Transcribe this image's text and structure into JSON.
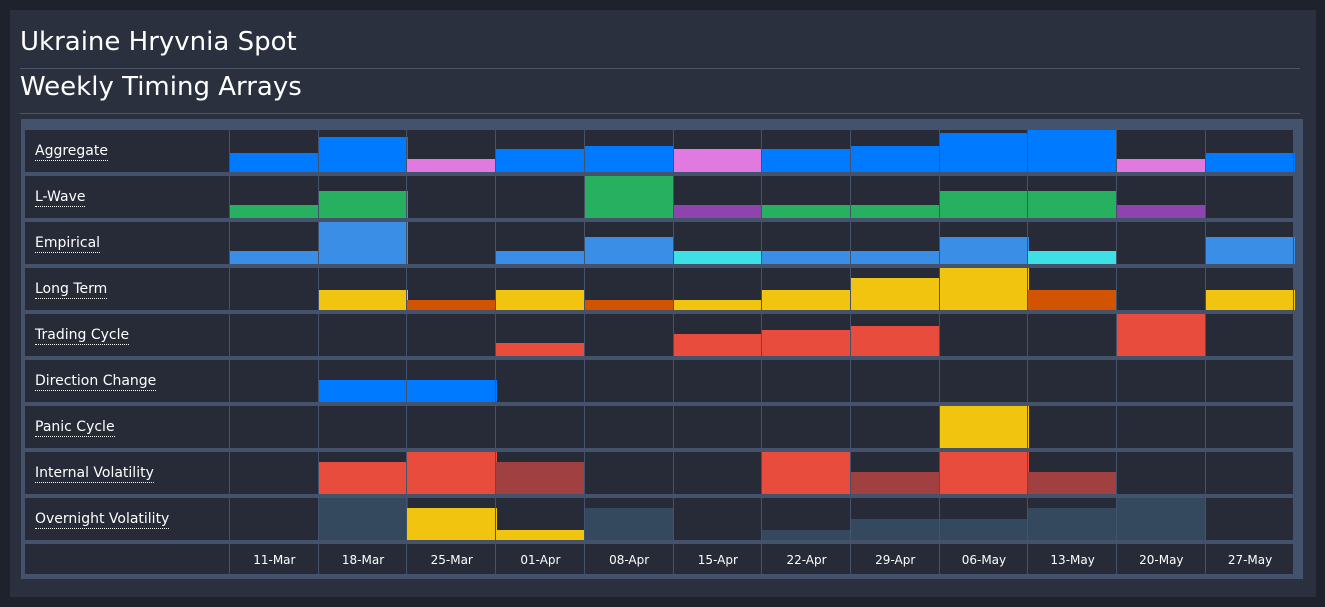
{
  "header": {
    "title": "Ukraine Hryvnia Spot",
    "subtitle": "Weekly Timing Arrays"
  },
  "colors": {
    "blue": "#007bff",
    "light_blue": "#3a8ee6",
    "pink": "#e07ae0",
    "green": "#26b05f",
    "purple": "#8e44ad",
    "cyan": "#3fe0e5",
    "yellow": "#f1c40f",
    "orange": "#d35400",
    "red": "#e74c3c",
    "dark_red": "#a04040",
    "slate": "#34495e"
  },
  "chart_data": {
    "type": "heatmap",
    "title": "Weekly Timing Arrays",
    "categories": [
      "11-Mar",
      "18-Mar",
      "25-Mar",
      "01-Apr",
      "08-Apr",
      "15-Apr",
      "22-Apr",
      "29-Apr",
      "06-May",
      "13-May",
      "20-May",
      "27-May"
    ],
    "value_range": [
      0,
      1
    ],
    "rows": [
      {
        "name": "Aggregate",
        "values": [
          0.45,
          0.83,
          0.3,
          0.55,
          0.63,
          0.55,
          0.55,
          0.63,
          0.93,
          1.0,
          0.3,
          0.45
        ],
        "colors": [
          "blue",
          "blue",
          "pink",
          "blue",
          "blue",
          "pink",
          "blue",
          "blue",
          "blue",
          "blue",
          "pink",
          "blue"
        ]
      },
      {
        "name": "L-Wave",
        "values": [
          0.3,
          0.65,
          0,
          0,
          1.0,
          0.3,
          0.3,
          0.3,
          0.65,
          0.65,
          0.3,
          0
        ],
        "colors": [
          "green",
          "green",
          "green",
          "green",
          "green",
          "purple",
          "green",
          "green",
          "green",
          "green",
          "purple",
          "green"
        ]
      },
      {
        "name": "Empirical",
        "values": [
          0.3,
          1.0,
          0,
          0.3,
          0.65,
          0.3,
          0.3,
          0.3,
          0.65,
          0.3,
          0,
          0.65
        ],
        "colors": [
          "light_blue",
          "light_blue",
          "light_blue",
          "light_blue",
          "light_blue",
          "cyan",
          "light_blue",
          "light_blue",
          "light_blue",
          "cyan",
          "light_blue",
          "light_blue"
        ]
      },
      {
        "name": "Long Term",
        "values": [
          0,
          0.48,
          0.24,
          0.48,
          0.24,
          0.24,
          0.48,
          0.76,
          1.0,
          0.48,
          0,
          0.48
        ],
        "colors": [
          "yellow",
          "yellow",
          "orange",
          "yellow",
          "orange",
          "yellow",
          "yellow",
          "yellow",
          "yellow",
          "orange",
          "yellow",
          "yellow"
        ]
      },
      {
        "name": "Trading Cycle",
        "values": [
          0,
          0,
          0,
          0.3,
          0,
          0.52,
          0.62,
          0.71,
          0,
          0,
          1.0,
          0
        ],
        "colors": [
          "red",
          "red",
          "red",
          "red",
          "red",
          "red",
          "red",
          "red",
          "red",
          "red",
          "red",
          "red"
        ]
      },
      {
        "name": "Direction Change",
        "values": [
          0,
          0.52,
          0.52,
          0,
          0,
          0,
          0,
          0,
          0,
          0,
          0,
          0
        ],
        "colors": [
          "blue",
          "blue",
          "blue",
          "blue",
          "blue",
          "blue",
          "blue",
          "blue",
          "blue",
          "blue",
          "blue",
          "blue"
        ]
      },
      {
        "name": "Panic Cycle",
        "values": [
          0,
          0,
          0,
          0,
          0,
          0,
          0,
          0,
          1.0,
          0,
          0,
          0
        ],
        "colors": [
          "yellow",
          "yellow",
          "yellow",
          "yellow",
          "yellow",
          "yellow",
          "yellow",
          "yellow",
          "yellow",
          "yellow",
          "yellow",
          "yellow"
        ]
      },
      {
        "name": "Internal Volatility",
        "values": [
          0,
          0.76,
          1.0,
          0.76,
          0,
          0,
          1.0,
          0.52,
          1.0,
          0.52,
          0,
          0
        ],
        "colors": [
          "red",
          "red",
          "red",
          "dark_red",
          "red",
          "red",
          "red",
          "dark_red",
          "red",
          "dark_red",
          "red",
          "red"
        ]
      },
      {
        "name": "Overnight Volatility",
        "values": [
          0,
          1.0,
          0.76,
          0.24,
          0.76,
          0,
          0.24,
          0.5,
          0.5,
          0.76,
          1.0,
          0
        ],
        "colors": [
          "slate",
          "slate",
          "yellow",
          "yellow",
          "slate",
          "slate",
          "slate",
          "slate",
          "slate",
          "slate",
          "slate",
          "slate"
        ]
      }
    ]
  }
}
